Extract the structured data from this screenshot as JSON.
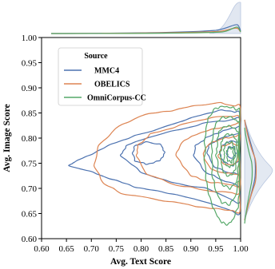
{
  "chart_data": {
    "type": "kde-contour",
    "xlabel": "Avg. Text Score",
    "ylabel": "Avg. Image Score",
    "xlim": [
      0.6,
      1.0
    ],
    "ylim": [
      0.6,
      1.0
    ],
    "x_ticks": [
      "0.60",
      "0.65",
      "0.70",
      "0.75",
      "0.80",
      "0.85",
      "0.90",
      "0.95",
      "1.00"
    ],
    "y_ticks": [
      "0.60",
      "0.65",
      "0.70",
      "0.75",
      "0.80",
      "0.85",
      "0.90",
      "0.95",
      "1.00"
    ],
    "grid": false,
    "legend": {
      "title": "Source",
      "placement": "top-left",
      "entries": [
        "MMC4",
        "OBELICS",
        "OmniCorpus-CC"
      ]
    },
    "marginals": {
      "top": true,
      "right": true
    },
    "series": [
      {
        "name": "MMC4",
        "color": "#4c72b0",
        "center": [
          0.975,
          0.77
        ],
        "contours": [
          {
            "center": [
              0.8,
              0.753
            ],
            "points": [
              [
                0.655,
                0.745
              ],
              [
                0.7,
                0.733
              ],
              [
                0.75,
                0.715
              ],
              [
                0.8,
                0.7
              ],
              [
                0.87,
                0.688
              ],
              [
                0.94,
                0.67
              ],
              [
                0.998,
                0.65
              ],
              [
                0.998,
                0.85
              ],
              [
                0.96,
                0.856
              ],
              [
                0.9,
                0.84
              ],
              [
                0.85,
                0.823
              ],
              [
                0.8,
                0.808
              ],
              [
                0.75,
                0.792
              ],
              [
                0.7,
                0.768
              ],
              [
                0.665,
                0.752
              ]
            ]
          },
          {
            "center": [
              0.92,
              0.766
            ],
            "points": [
              [
                0.76,
                0.765
              ],
              [
                0.8,
                0.732
              ],
              [
                0.86,
                0.712
              ],
              [
                0.93,
                0.7
              ],
              [
                0.998,
                0.672
              ],
              [
                0.998,
                0.838
              ],
              [
                0.94,
                0.832
              ],
              [
                0.88,
                0.818
              ],
              [
                0.81,
                0.8
              ],
              [
                0.77,
                0.785
              ]
            ]
          },
          {
            "center": [
              0.81,
              0.77
            ],
            "points": [
              [
                0.783,
                0.77
              ],
              [
                0.788,
                0.755
              ],
              [
                0.81,
                0.748
              ],
              [
                0.838,
                0.755
              ],
              [
                0.848,
                0.772
              ],
              [
                0.838,
                0.788
              ],
              [
                0.81,
                0.792
              ],
              [
                0.788,
                0.785
              ]
            ]
          },
          {
            "center": [
              0.96,
              0.77
            ],
            "points": [
              [
                0.905,
                0.765
              ],
              [
                0.93,
                0.732
              ],
              [
                0.96,
                0.718
              ],
              [
                0.998,
                0.705
              ],
              [
                0.998,
                0.822
              ],
              [
                0.965,
                0.815
              ],
              [
                0.93,
                0.8
              ],
              [
                0.91,
                0.785
              ]
            ]
          },
          {
            "center": [
              0.97,
              0.77
            ],
            "points": [
              [
                0.932,
                0.77
              ],
              [
                0.948,
                0.742
              ],
              [
                0.975,
                0.732
              ],
              [
                0.998,
                0.728
              ],
              [
                0.998,
                0.808
              ],
              [
                0.975,
                0.805
              ],
              [
                0.95,
                0.795
              ],
              [
                0.936,
                0.785
              ]
            ]
          },
          {
            "center": [
              0.977,
              0.77
            ],
            "points": [
              [
                0.958,
                0.77
              ],
              [
                0.966,
                0.752
              ],
              [
                0.985,
                0.745
              ],
              [
                0.996,
                0.755
              ],
              [
                0.996,
                0.79
              ],
              [
                0.985,
                0.795
              ],
              [
                0.966,
                0.788
              ],
              [
                0.96,
                0.78
              ]
            ]
          },
          {
            "center": [
              0.978,
              0.771
            ],
            "points": [
              [
                0.972,
                0.771
              ],
              [
                0.975,
                0.762
              ],
              [
                0.985,
                0.76
              ],
              [
                0.99,
                0.77
              ],
              [
                0.987,
                0.782
              ],
              [
                0.976,
                0.782
              ]
            ]
          }
        ]
      },
      {
        "name": "OBELICS",
        "color": "#dd8452",
        "center": [
          0.975,
          0.765
        ],
        "contours": [
          {
            "center": [
              0.9,
              0.76
            ],
            "points": [
              [
                0.705,
                0.745
              ],
              [
                0.725,
                0.71
              ],
              [
                0.76,
                0.69
              ],
              [
                0.82,
                0.68
              ],
              [
                0.88,
                0.67
              ],
              [
                0.94,
                0.66
              ],
              [
                0.998,
                0.655
              ],
              [
                0.998,
                0.862
              ],
              [
                0.96,
                0.87
              ],
              [
                0.92,
                0.866
              ],
              [
                0.86,
                0.855
              ],
              [
                0.8,
                0.845
              ],
              [
                0.75,
                0.82
              ],
              [
                0.715,
                0.785
              ]
            ]
          },
          {
            "center": [
              0.9,
              0.763
            ],
            "points": [
              [
                0.79,
                0.765
              ],
              [
                0.812,
                0.728
              ],
              [
                0.87,
                0.707
              ],
              [
                0.93,
                0.696
              ],
              [
                0.998,
                0.69
              ],
              [
                0.998,
                0.843
              ],
              [
                0.945,
                0.842
              ],
              [
                0.88,
                0.826
              ],
              [
                0.82,
                0.808
              ],
              [
                0.795,
                0.787
              ]
            ]
          },
          {
            "center": [
              0.955,
              0.765
            ],
            "points": [
              [
                0.87,
                0.765
              ],
              [
                0.9,
                0.725
              ],
              [
                0.94,
                0.712
              ],
              [
                0.998,
                0.705
              ],
              [
                0.998,
                0.828
              ],
              [
                0.955,
                0.82
              ],
              [
                0.91,
                0.808
              ],
              [
                0.88,
                0.79
              ]
            ]
          },
          {
            "center": [
              0.97,
              0.765
            ],
            "points": [
              [
                0.925,
                0.765
              ],
              [
                0.94,
                0.738
              ],
              [
                0.97,
                0.73
              ],
              [
                0.998,
                0.728
              ],
              [
                0.998,
                0.805
              ],
              [
                0.97,
                0.8
              ],
              [
                0.945,
                0.793
              ],
              [
                0.93,
                0.782
              ]
            ]
          },
          {
            "center": [
              0.978,
              0.766
            ],
            "points": [
              [
                0.955,
                0.766
              ],
              [
                0.963,
                0.75
              ],
              [
                0.985,
                0.746
              ],
              [
                0.996,
                0.758
              ],
              [
                0.996,
                0.785
              ],
              [
                0.982,
                0.79
              ],
              [
                0.964,
                0.784
              ]
            ]
          }
        ]
      },
      {
        "name": "OmniCorpus-CC",
        "color": "#55a868",
        "center": [
          0.975,
          0.76
        ],
        "contours": [
          {
            "center": [
              0.965,
              0.752
            ],
            "points": [
              [
                0.928,
                0.77
              ],
              [
                0.93,
                0.72
              ],
              [
                0.938,
                0.68
              ],
              [
                0.95,
                0.65
              ],
              [
                0.962,
                0.632
              ],
              [
                0.975,
                0.628
              ],
              [
                0.986,
                0.64
              ],
              [
                0.995,
                0.665
              ],
              [
                0.998,
                0.7
              ],
              [
                0.998,
                0.855
              ],
              [
                0.985,
                0.86
              ],
              [
                0.968,
                0.863
              ],
              [
                0.95,
                0.86
              ],
              [
                0.935,
                0.84
              ],
              [
                0.929,
                0.81
              ]
            ]
          },
          {
            "center": [
              0.968,
              0.755
            ],
            "points": [
              [
                0.942,
                0.765
              ],
              [
                0.944,
                0.72
              ],
              [
                0.952,
                0.69
              ],
              [
                0.962,
                0.672
              ],
              [
                0.978,
                0.668
              ],
              [
                0.99,
                0.685
              ],
              [
                0.997,
                0.72
              ],
              [
                0.997,
                0.83
              ],
              [
                0.985,
                0.84
              ],
              [
                0.965,
                0.842
              ],
              [
                0.95,
                0.83
              ],
              [
                0.943,
                0.8
              ]
            ]
          },
          {
            "center": [
              0.97,
              0.76
            ],
            "points": [
              [
                0.952,
                0.765
              ],
              [
                0.955,
                0.728
              ],
              [
                0.963,
                0.708
              ],
              [
                0.978,
                0.7
              ],
              [
                0.992,
                0.712
              ],
              [
                0.996,
                0.745
              ],
              [
                0.996,
                0.81
              ],
              [
                0.985,
                0.822
              ],
              [
                0.968,
                0.824
              ],
              [
                0.956,
                0.812
              ],
              [
                0.953,
                0.79
              ]
            ]
          },
          {
            "center": [
              0.972,
              0.762
            ],
            "points": [
              [
                0.96,
                0.765
              ],
              [
                0.963,
                0.738
              ],
              [
                0.972,
                0.725
              ],
              [
                0.985,
                0.728
              ],
              [
                0.992,
                0.75
              ],
              [
                0.992,
                0.795
              ],
              [
                0.982,
                0.808
              ],
              [
                0.968,
                0.806
              ],
              [
                0.961,
                0.79
              ]
            ]
          },
          {
            "center": [
              0.975,
              0.765
            ],
            "points": [
              [
                0.966,
                0.765
              ],
              [
                0.969,
                0.748
              ],
              [
                0.978,
                0.742
              ],
              [
                0.987,
                0.75
              ],
              [
                0.989,
                0.778
              ],
              [
                0.982,
                0.792
              ],
              [
                0.97,
                0.79
              ],
              [
                0.967,
                0.778
              ]
            ]
          },
          {
            "center": [
              0.977,
              0.766
            ],
            "points": [
              [
                0.972,
                0.766
              ],
              [
                0.974,
                0.755
              ],
              [
                0.982,
                0.752
              ],
              [
                0.986,
                0.762
              ],
              [
                0.985,
                0.778
              ],
              [
                0.978,
                0.782
              ],
              [
                0.973,
                0.776
              ]
            ]
          }
        ]
      }
    ]
  }
}
